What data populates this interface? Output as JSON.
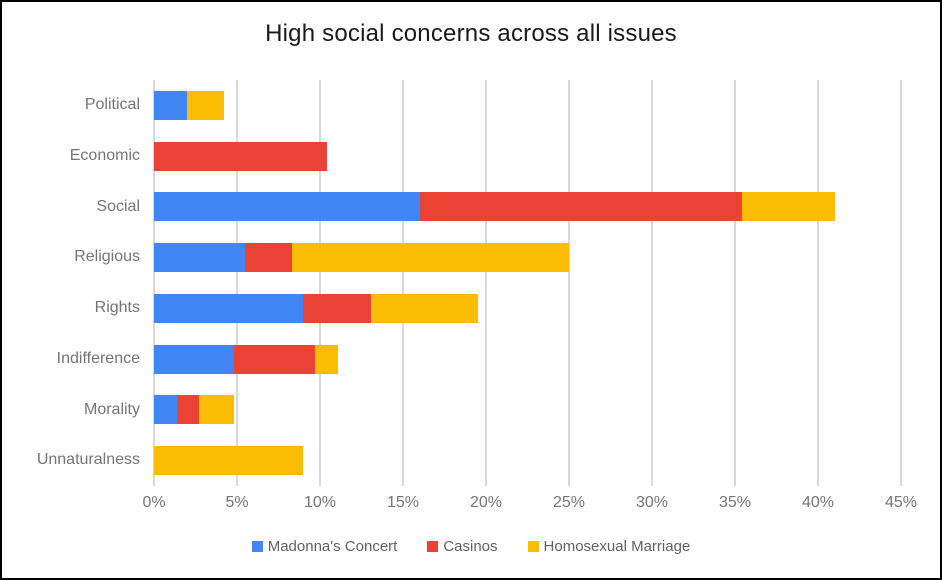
{
  "title": "High social concerns across all issues",
  "colors": {
    "series_blue": "#4285F4",
    "series_red": "#EA4335",
    "series_yellow": "#FBBC04",
    "gridline": "#d9d9d9",
    "axis_text": "#757575",
    "legend_text": "#616161",
    "title_text": "#1a1a1a",
    "frame_border": "#000000"
  },
  "chart_data": {
    "type": "bar",
    "orientation": "horizontal",
    "stacked": true,
    "grid": true,
    "legend_position": "bottom",
    "title": "High social concerns across all issues",
    "unit": "%",
    "categories": [
      "Political",
      "Economic",
      "Social",
      "Religious",
      "Rights",
      "Indifference",
      "Morality",
      "Unnaturalness"
    ],
    "series": [
      {
        "name": "Madonna's Concert",
        "color": "#4285F4",
        "values": [
          2.0,
          0,
          16.0,
          5.5,
          9.0,
          4.8,
          1.4,
          0
        ]
      },
      {
        "name": "Casinos",
        "color": "#EA4335",
        "values": [
          0,
          10.4,
          19.4,
          2.8,
          4.1,
          4.9,
          1.3,
          0
        ]
      },
      {
        "name": "Homosexual Marriage",
        "color": "#FBBC04",
        "values": [
          2.2,
          0,
          5.6,
          16.7,
          6.4,
          1.4,
          2.1,
          9.0
        ]
      }
    ],
    "category_totals": [
      4.2,
      10.4,
      41.0,
      25.0,
      19.5,
      11.1,
      4.8,
      9.0
    ],
    "x_ticks": [
      "0%",
      "5%",
      "10%",
      "15%",
      "20%",
      "25%",
      "30%",
      "35%",
      "40%",
      "45%"
    ],
    "x_min": 0,
    "x_max": 45,
    "x_tick_step": 5
  }
}
